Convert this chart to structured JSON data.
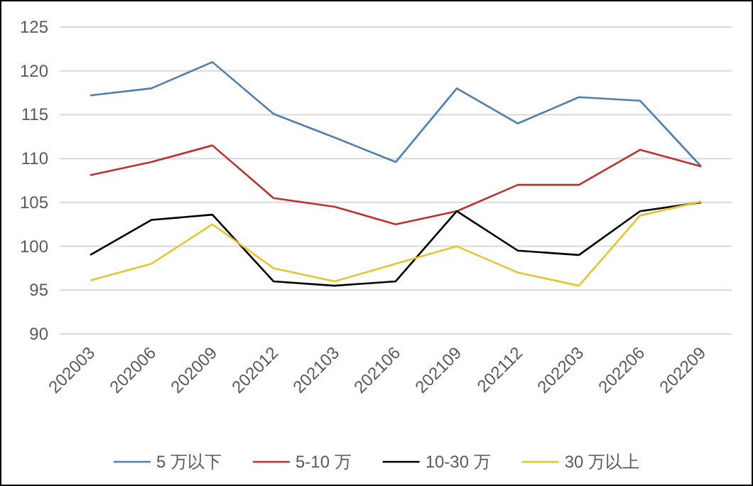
{
  "chart_data": {
    "type": "line",
    "categories": [
      "202003",
      "202006",
      "202009",
      "202012",
      "202103",
      "202106",
      "202109",
      "202112",
      "202203",
      "202206",
      "202209"
    ],
    "series": [
      {
        "name": "5 万以下",
        "color": "#4f7fb0",
        "values": [
          117.2,
          118,
          121,
          115.1,
          112.4,
          109.6,
          118,
          114,
          117,
          116.6,
          109.1
        ]
      },
      {
        "name": "5-10 万",
        "color": "#c0302e",
        "values": [
          108.1,
          109.6,
          111.5,
          105.5,
          104.5,
          102.5,
          104,
          107,
          107,
          111,
          109.1
        ]
      },
      {
        "name": "10-30 万",
        "color": "#000000",
        "values": [
          99,
          103,
          103.6,
          96,
          95.5,
          96,
          104,
          99.5,
          99,
          104,
          105
        ]
      },
      {
        "name": "30 万以上",
        "color": "#e8c431",
        "values": [
          96.1,
          98,
          102.5,
          97.5,
          96,
          98,
          100,
          97,
          95.5,
          103.5,
          105.1
        ]
      }
    ],
    "ylim": [
      90,
      125
    ],
    "yticks": [
      90,
      95,
      100,
      105,
      110,
      115,
      120,
      125
    ],
    "grid": "y",
    "legend": "bottom",
    "marker": "none",
    "line_style": "solid"
  }
}
